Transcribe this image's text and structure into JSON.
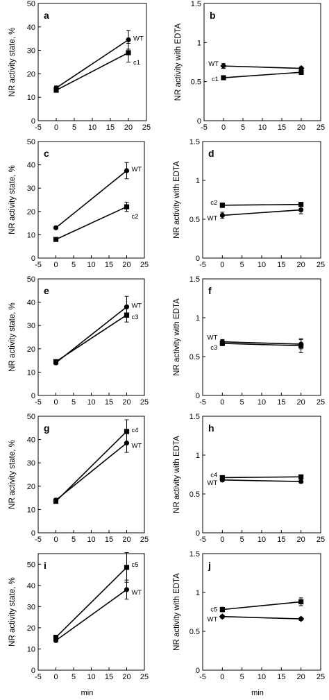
{
  "chart_data": [
    {
      "type": "line",
      "panel": "a",
      "ylabel": "NR activity state, %",
      "xlim": [
        -5,
        25
      ],
      "ylim": [
        0,
        50
      ],
      "xticks": [
        -5,
        0,
        5,
        10,
        15,
        20,
        25
      ],
      "yticks": [
        0,
        10,
        20,
        30,
        40,
        50
      ],
      "x": [
        0,
        20
      ],
      "series": [
        {
          "name": "WT",
          "marker": "circle",
          "values": [
            14,
            34.5
          ],
          "errors": [
            0.8,
            4
          ]
        },
        {
          "name": "c1",
          "marker": "square",
          "values": [
            13,
            29
          ],
          "errors": [
            0.8,
            4
          ]
        }
      ]
    },
    {
      "type": "line",
      "panel": "b",
      "ylabel": "NR activity with EDTA",
      "xlim": [
        -5,
        25
      ],
      "ylim": [
        0,
        1.5
      ],
      "xticks": [
        -5,
        0,
        5,
        10,
        15,
        20,
        25
      ],
      "yticks": [
        0,
        0.5,
        1,
        1.5
      ],
      "x": [
        0,
        20
      ],
      "series": [
        {
          "name": "WT",
          "marker": "diamond",
          "values": [
            0.7,
            0.67
          ],
          "errors": [
            0.03,
            0.02
          ]
        },
        {
          "name": "c1",
          "marker": "square",
          "values": [
            0.55,
            0.62
          ],
          "errors": [
            0.02,
            0.03
          ]
        }
      ]
    },
    {
      "type": "line",
      "panel": "c",
      "ylabel": "NR activity state, %",
      "xlim": [
        -5,
        25
      ],
      "ylim": [
        0,
        50
      ],
      "xticks": [
        -5,
        0,
        5,
        10,
        15,
        20,
        25
      ],
      "yticks": [
        0,
        10,
        20,
        30,
        40,
        50
      ],
      "x": [
        0,
        20
      ],
      "series": [
        {
          "name": "WT",
          "marker": "circle",
          "values": [
            13,
            37.5
          ],
          "errors": [
            0.5,
            3.5
          ]
        },
        {
          "name": "c2",
          "marker": "square",
          "values": [
            8,
            22
          ],
          "errors": [
            0.5,
            2
          ]
        }
      ]
    },
    {
      "type": "line",
      "panel": "d",
      "ylabel": "NR activity with EDTA",
      "xlim": [
        -5,
        25
      ],
      "ylim": [
        0,
        1.5
      ],
      "xticks": [
        -5,
        0,
        5,
        10,
        15,
        20,
        25
      ],
      "yticks": [
        0,
        0.5,
        1,
        1.5
      ],
      "x": [
        0,
        20
      ],
      "series": [
        {
          "name": "c2",
          "marker": "square",
          "values": [
            0.68,
            0.69
          ],
          "errors": [
            0.03,
            0.02
          ]
        },
        {
          "name": "WT",
          "marker": "circle",
          "values": [
            0.55,
            0.62
          ],
          "errors": [
            0.04,
            0.05
          ]
        }
      ]
    },
    {
      "type": "line",
      "panel": "e",
      "ylabel": "NR activity state, %",
      "xlim": [
        -5,
        25
      ],
      "ylim": [
        0,
        50
      ],
      "xticks": [
        -5,
        0,
        5,
        10,
        15,
        20,
        25
      ],
      "yticks": [
        0,
        10,
        20,
        30,
        40,
        50
      ],
      "x": [
        0,
        20
      ],
      "series": [
        {
          "name": "WT",
          "marker": "circle",
          "values": [
            14,
            38
          ],
          "errors": [
            0.8,
            4.5
          ]
        },
        {
          "name": "c3",
          "marker": "square",
          "values": [
            14.5,
            34.5
          ],
          "errors": [
            0.8,
            3
          ]
        }
      ]
    },
    {
      "type": "line",
      "panel": "f",
      "ylabel": "NR activity with EDTA",
      "xlim": [
        -5,
        25
      ],
      "ylim": [
        0,
        1.5
      ],
      "xticks": [
        -5,
        0,
        5,
        10,
        15,
        20,
        25
      ],
      "yticks": [
        0,
        0.5,
        1,
        1.5
      ],
      "x": [
        0,
        20
      ],
      "series": [
        {
          "name": "WT",
          "marker": "circle",
          "values": [
            0.69,
            0.66
          ],
          "errors": [
            0.03,
            0.06
          ]
        },
        {
          "name": "c3",
          "marker": "square",
          "values": [
            0.67,
            0.64
          ],
          "errors": [
            0.03,
            0.09
          ]
        }
      ]
    },
    {
      "type": "line",
      "panel": "g",
      "ylabel": "NR activity state, %",
      "xlim": [
        -5,
        25
      ],
      "ylim": [
        0,
        50
      ],
      "xticks": [
        -5,
        0,
        5,
        10,
        15,
        20,
        25
      ],
      "yticks": [
        0,
        10,
        20,
        30,
        40,
        50
      ],
      "x": [
        0,
        20
      ],
      "series": [
        {
          "name": "c4",
          "marker": "square",
          "values": [
            13.5,
            43.5
          ],
          "errors": [
            0.8,
            5
          ]
        },
        {
          "name": "WT",
          "marker": "circle",
          "values": [
            14,
            38.5
          ],
          "errors": [
            0.8,
            4
          ]
        }
      ]
    },
    {
      "type": "line",
      "panel": "h",
      "ylabel": "NR activity with EDTA",
      "xlim": [
        -5,
        25
      ],
      "ylim": [
        0,
        1.5
      ],
      "xticks": [
        -5,
        0,
        5,
        10,
        15,
        20,
        25
      ],
      "yticks": [
        0,
        0.5,
        1,
        1.5
      ],
      "x": [
        0,
        20
      ],
      "series": [
        {
          "name": "c4",
          "marker": "square",
          "values": [
            0.71,
            0.72
          ],
          "errors": [
            0.02,
            0.02
          ]
        },
        {
          "name": "WT",
          "marker": "circle",
          "values": [
            0.68,
            0.66
          ],
          "errors": [
            0.02,
            0.02
          ]
        }
      ]
    },
    {
      "type": "line",
      "panel": "i",
      "ylabel": "NR activity state, %",
      "xlabel": "min",
      "xlim": [
        -5,
        25
      ],
      "ylim": [
        0,
        55
      ],
      "xticks": [
        -5,
        0,
        5,
        10,
        15,
        20,
        25
      ],
      "yticks": [
        0,
        10,
        20,
        30,
        40,
        50
      ],
      "x": [
        0,
        20
      ],
      "series": [
        {
          "name": "c5",
          "marker": "square",
          "values": [
            15.5,
            48.5
          ],
          "errors": [
            0.8,
            7
          ]
        },
        {
          "name": "WT",
          "marker": "circle",
          "values": [
            14,
            38
          ],
          "errors": [
            0.8,
            4.5
          ]
        }
      ]
    },
    {
      "type": "line",
      "panel": "j",
      "ylabel": "NR activity with EDTA",
      "xlabel": "min",
      "xlim": [
        -5,
        25
      ],
      "ylim": [
        0,
        1.5
      ],
      "xticks": [
        -5,
        0,
        5,
        10,
        15,
        20,
        25
      ],
      "yticks": [
        0,
        0.5,
        1,
        1.5
      ],
      "x": [
        0,
        20
      ],
      "series": [
        {
          "name": "c5",
          "marker": "square",
          "values": [
            0.78,
            0.88
          ],
          "errors": [
            0.03,
            0.05
          ]
        },
        {
          "name": "WT",
          "marker": "diamond",
          "values": [
            0.69,
            0.66
          ],
          "errors": [
            0.02,
            0.02
          ]
        }
      ]
    }
  ]
}
